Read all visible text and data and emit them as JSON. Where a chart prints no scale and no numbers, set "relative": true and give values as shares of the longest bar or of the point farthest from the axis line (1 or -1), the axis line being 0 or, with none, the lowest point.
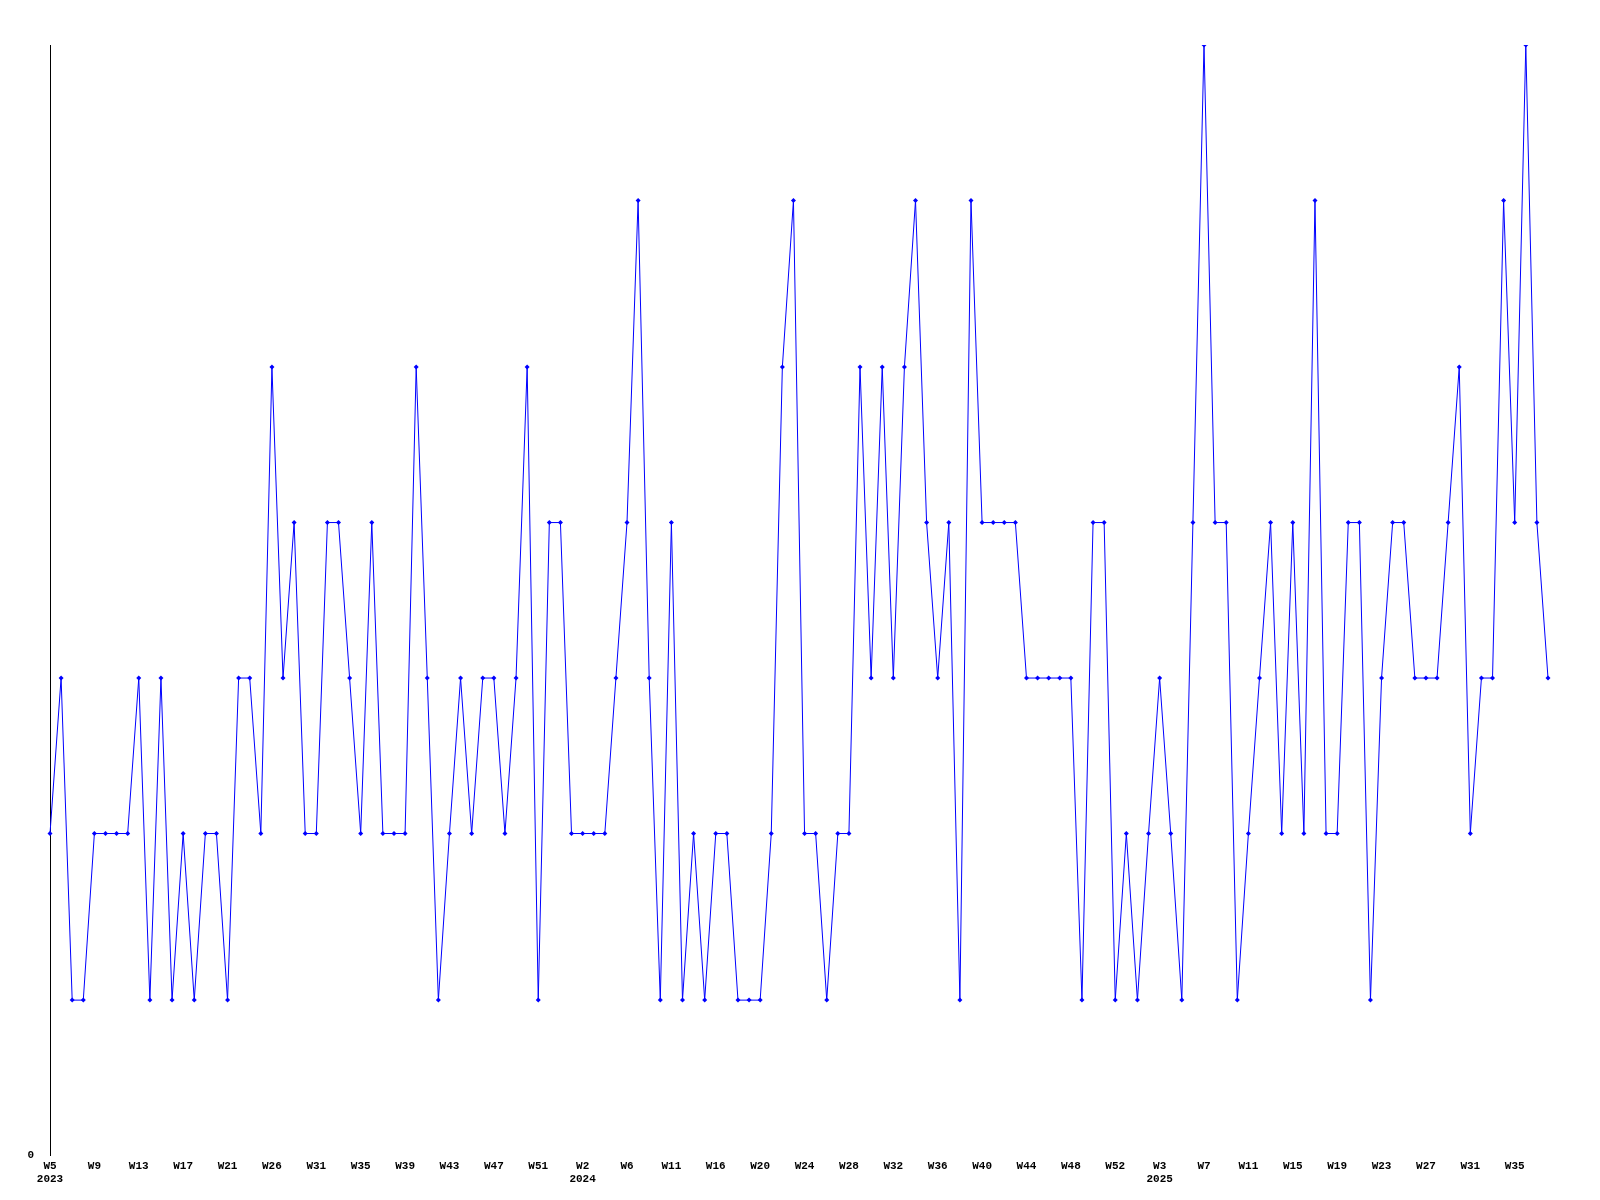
{
  "chart_data": {
    "type": "line",
    "relative": true,
    "categories": [
      "W5\n2023",
      null,
      null,
      null,
      "W9",
      null,
      null,
      null,
      "W13",
      null,
      null,
      null,
      "W17",
      null,
      null,
      null,
      "W21",
      null,
      null,
      null,
      "W26",
      null,
      null,
      null,
      "W31",
      null,
      null,
      null,
      "W35",
      null,
      null,
      null,
      "W39",
      null,
      null,
      null,
      "W43",
      null,
      null,
      null,
      "W47",
      null,
      null,
      null,
      "W51",
      null,
      null,
      null,
      "W2\n2024",
      null,
      null,
      null,
      "W6",
      null,
      null,
      null,
      "W11",
      null,
      null,
      null,
      "W16",
      null,
      null,
      null,
      "W20",
      null,
      null,
      null,
      "W24",
      null,
      null,
      null,
      "W28",
      null,
      null,
      null,
      "W32",
      null,
      null,
      null,
      "W36",
      null,
      null,
      null,
      "W40",
      null,
      null,
      null,
      "W44",
      null,
      null,
      null,
      "W48",
      null,
      null,
      null,
      "W52",
      null,
      null,
      null,
      "W3\n2025",
      null,
      null,
      null,
      "W7",
      null,
      null,
      null,
      "W11",
      null,
      null,
      null,
      "W15",
      null,
      null,
      null,
      "W19",
      null,
      null,
      null,
      "W23",
      null,
      null,
      null,
      "W27",
      null,
      null,
      null,
      "W31",
      null,
      null,
      null,
      "W35",
      null,
      null,
      null
    ],
    "series": [
      {
        "color": "#0000ff",
        "values": [
          0.29,
          0.43,
          0.14,
          0.14,
          0.29,
          0.29,
          0.29,
          0.29,
          0.43,
          0.14,
          0.43,
          0.14,
          0.29,
          0.14,
          0.29,
          0.29,
          0.14,
          0.43,
          0.43,
          0.29,
          0.71,
          0.43,
          0.57,
          0.29,
          0.29,
          0.57,
          0.57,
          0.43,
          0.29,
          0.57,
          0.29,
          0.29,
          0.29,
          0.71,
          0.43,
          0.14,
          0.29,
          0.43,
          0.29,
          0.43,
          0.43,
          0.29,
          0.43,
          0.71,
          0.14,
          0.57,
          0.57,
          0.29,
          0.29,
          0.29,
          0.29,
          0.43,
          0.57,
          0.86,
          0.43,
          0.14,
          0.57,
          0.14,
          0.29,
          0.14,
          0.29,
          0.29,
          0.14,
          0.14,
          0.14,
          0.29,
          0.71,
          0.86,
          0.29,
          0.29,
          0.14,
          0.29,
          0.29,
          0.71,
          0.43,
          0.71,
          0.43,
          0.71,
          0.86,
          0.57,
          0.43,
          0.57,
          0.14,
          0.86,
          0.57,
          0.57,
          0.57,
          0.57,
          0.43,
          0.43,
          0.43,
          0.43,
          0.43,
          0.14,
          0.57,
          0.57,
          0.14,
          0.29,
          0.14,
          0.29,
          0.43,
          0.29,
          0.14,
          0.57,
          1,
          0.57,
          0.57,
          0.14,
          0.29,
          0.43,
          0.57,
          0.29,
          0.57,
          0.29,
          0.86,
          0.29,
          0.29,
          0.57,
          0.57,
          0.14,
          0.43,
          0.57,
          0.57,
          0.43,
          0.43,
          0.43,
          0.57,
          0.71,
          0.29,
          0.43,
          0.43,
          0.86,
          0.57,
          1,
          0.57,
          0.43
        ]
      }
    ],
    "annotations": [
      "0"
    ],
    "grid": false,
    "legend": false,
    "marker": "diamond",
    "line_style": "solid"
  }
}
